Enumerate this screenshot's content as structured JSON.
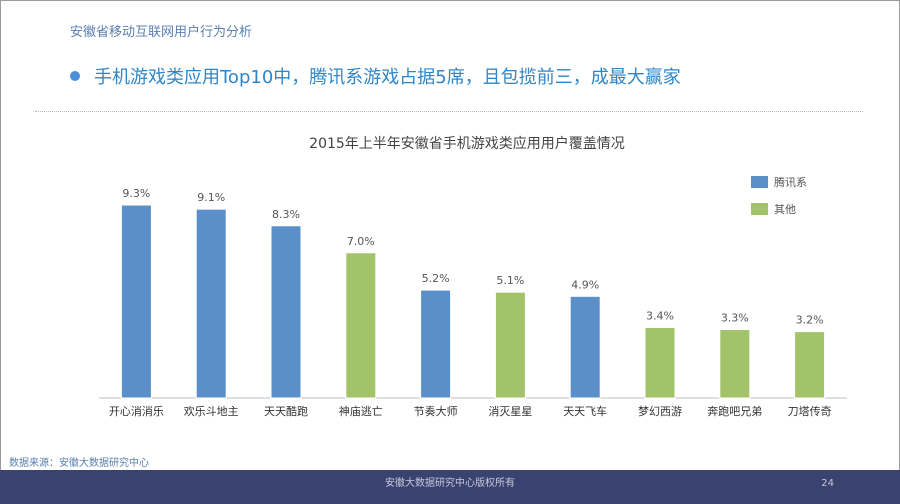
{
  "header": {
    "section_title": "安徽省移动互联网用户行为分析",
    "headline": "手机游戏类应用Top10中，腾讯系游戏占据5席，且包揽前三，成最大赢家"
  },
  "chart_data": {
    "type": "bar",
    "title": "2015年上半年安徽省手机游戏类应用用户覆盖情况",
    "categories": [
      "开心消消乐",
      "欢乐斗地主",
      "天天酷跑",
      "神庙逃亡",
      "节奏大师",
      "消灭星星",
      "天天飞车",
      "梦幻西游",
      "奔跑吧兄弟",
      "刀塔传奇"
    ],
    "values": [
      9.3,
      9.1,
      8.3,
      7.0,
      5.2,
      5.1,
      4.9,
      3.4,
      3.3,
      3.2
    ],
    "value_labels": [
      "9.3%",
      "9.1%",
      "8.3%",
      "7.0%",
      "5.2%",
      "5.1%",
      "4.9%",
      "3.4%",
      "3.3%",
      "3.2%"
    ],
    "groups": [
      "腾讯系",
      "腾讯系",
      "腾讯系",
      "其他",
      "腾讯系",
      "其他",
      "腾讯系",
      "其他",
      "其他",
      "其他"
    ],
    "legend": [
      {
        "name": "腾讯系",
        "color": "#5b8fc9"
      },
      {
        "name": "其他",
        "color": "#a3c36a"
      }
    ],
    "legend_position": "top-right",
    "ylim": [
      0,
      10
    ],
    "grid": false,
    "xlabel": "",
    "ylabel": ""
  },
  "source": "数据来源：安徽大数据研究中心",
  "footer": {
    "copyright": "安徽大数据研究中心版权所有",
    "page_number": "24"
  }
}
